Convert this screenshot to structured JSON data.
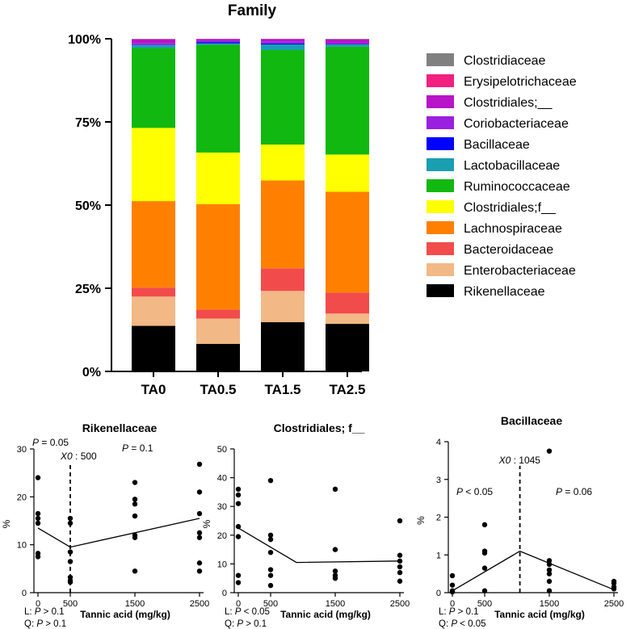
{
  "chart_data": [
    {
      "type": "bar",
      "stacked": true,
      "title": "Family",
      "categories": [
        "TA0",
        "TA0.5",
        "TA1.5",
        "TA2.5"
      ],
      "yticks": [
        "0%",
        "25%",
        "50%",
        "75%",
        "100%"
      ],
      "ylim": [
        0,
        100
      ],
      "series": [
        {
          "name": "Rikenellaceae",
          "color": "#000000",
          "values": [
            13.7,
            8.3,
            14.8,
            14.3
          ]
        },
        {
          "name": "Enterobacteriaceae",
          "color": "#F2B885",
          "values": [
            8.8,
            7.6,
            9.4,
            3.1
          ]
        },
        {
          "name": "Bacteroidaceae",
          "color": "#F24B4B",
          "values": [
            2.7,
            2.7,
            6.8,
            6.3
          ]
        },
        {
          "name": "Lachnospiraceae",
          "color": "#FF8000",
          "values": [
            26.0,
            31.7,
            26.4,
            30.3
          ]
        },
        {
          "name": "Clostridiales;f__",
          "color": "#FFFF00",
          "values": [
            22.0,
            15.5,
            10.8,
            11.2
          ]
        },
        {
          "name": "Ruminococcaceae",
          "color": "#11B80F",
          "values": [
            24.0,
            32.4,
            28.4,
            32.4
          ]
        },
        {
          "name": "Lactobacillaceae",
          "color": "#1A9FB0",
          "values": [
            0.9,
            0.4,
            1.7,
            0.7
          ]
        },
        {
          "name": "Bacillaceae",
          "color": "#0000FF",
          "values": [
            0.1,
            0.4,
            0.3,
            0.1
          ]
        },
        {
          "name": "Coriobacteriaceae",
          "color": "#9B1FE0",
          "values": [
            0.4,
            0.5,
            0.6,
            0.4
          ]
        },
        {
          "name": "Clostridiales;__",
          "color": "#B814C8",
          "values": [
            1.2,
            0.4,
            0.7,
            1.0
          ]
        },
        {
          "name": "Erysipelotrichaceae",
          "color": "#F2207F",
          "values": [
            0.1,
            0.05,
            0.05,
            0.05
          ]
        },
        {
          "name": "Clostridiaceae",
          "color": "#808080",
          "values": [
            0.1,
            0.05,
            0.05,
            0.15
          ]
        }
      ]
    },
    {
      "type": "scatter",
      "title": "Rikenellaceae",
      "xlabel": "Tannic acid (mg/kg)",
      "ylabel": "%",
      "xticks": [
        0,
        500,
        1500,
        2500
      ],
      "yticks": [
        0,
        10,
        20,
        30
      ],
      "ylim": [
        0,
        30
      ],
      "points": [
        [
          0,
          24
        ],
        [
          0,
          16.5
        ],
        [
          0,
          15.5
        ],
        [
          0,
          14.5
        ],
        [
          0,
          8.2
        ],
        [
          0,
          7.5
        ],
        [
          500,
          15.5
        ],
        [
          500,
          14.5
        ],
        [
          500,
          8.5
        ],
        [
          500,
          6.5
        ],
        [
          500,
          3.2
        ],
        [
          500,
          2.5
        ],
        [
          500,
          2.2
        ],
        [
          1500,
          23
        ],
        [
          1500,
          19.5
        ],
        [
          1500,
          18.5
        ],
        [
          1500,
          16
        ],
        [
          1500,
          12
        ],
        [
          1500,
          11.5
        ],
        [
          1500,
          4.5
        ],
        [
          2500,
          26.8
        ],
        [
          2500,
          21
        ],
        [
          2500,
          16.5
        ],
        [
          2500,
          12.5
        ],
        [
          2500,
          11.5
        ],
        [
          2500,
          6.2
        ],
        [
          2500,
          4.5
        ]
      ],
      "fit_line": [
        [
          0,
          13.5
        ],
        [
          500,
          9.5
        ],
        [
          2500,
          15.5
        ]
      ],
      "breakpoint": 500,
      "annotations": {
        "p_left": "P = 0.05",
        "x0": "X0 : 500",
        "p_right": "P = 0.1"
      },
      "stats": {
        "L": "L: P > 0.1",
        "Q": "Q: P > 0.1"
      }
    },
    {
      "type": "scatter",
      "title": "Clostridiales; f__",
      "xlabel": "Tannic acid (mg/kg)",
      "ylabel": "%",
      "xticks": [
        0,
        500,
        1500,
        2500
      ],
      "yticks": [
        0,
        10,
        20,
        30,
        40,
        50
      ],
      "ylim": [
        0,
        50
      ],
      "points": [
        [
          0,
          36
        ],
        [
          0,
          34
        ],
        [
          0,
          31
        ],
        [
          0,
          23
        ],
        [
          0,
          19.5
        ],
        [
          0,
          6
        ],
        [
          0,
          3.5
        ],
        [
          500,
          39
        ],
        [
          500,
          20
        ],
        [
          500,
          18.5
        ],
        [
          500,
          14
        ],
        [
          500,
          8
        ],
        [
          500,
          6
        ],
        [
          500,
          2.5
        ],
        [
          1500,
          36
        ],
        [
          1500,
          15
        ],
        [
          1500,
          7.5
        ],
        [
          1500,
          6
        ],
        [
          1500,
          5
        ],
        [
          2500,
          25
        ],
        [
          2500,
          13
        ],
        [
          2500,
          11
        ],
        [
          2500,
          9
        ],
        [
          2500,
          7
        ],
        [
          2500,
          4
        ]
      ],
      "fit_line": [
        [
          0,
          22.5
        ],
        [
          900,
          10.5
        ],
        [
          2500,
          11
        ]
      ],
      "stats": {
        "L": "L: P < 0.05",
        "Q": "Q: P > 0.1"
      }
    },
    {
      "type": "scatter",
      "title": "Bacillaceae",
      "xlabel": "Tannic acid (mg/kg)",
      "ylabel": "%",
      "xticks": [
        0,
        500,
        1500,
        2500
      ],
      "yticks": [
        0,
        1,
        2,
        3,
        4
      ],
      "ylim": [
        0,
        4
      ],
      "points": [
        [
          0,
          0.45
        ],
        [
          0,
          0.2
        ],
        [
          0,
          0.05
        ],
        [
          0,
          0.02
        ],
        [
          500,
          1.8
        ],
        [
          500,
          1.1
        ],
        [
          500,
          1.05
        ],
        [
          500,
          0.65
        ],
        [
          500,
          0.05
        ],
        [
          1500,
          3.75
        ],
        [
          1500,
          0.85
        ],
        [
          1500,
          0.75
        ],
        [
          1500,
          0.6
        ],
        [
          1500,
          0.5
        ],
        [
          1500,
          0.3
        ],
        [
          1500,
          0.05
        ],
        [
          2500,
          0.3
        ],
        [
          2500,
          0.25
        ],
        [
          2500,
          0.15
        ],
        [
          2500,
          0.1
        ]
      ],
      "fit_line": [
        [
          0,
          0.05
        ],
        [
          1045,
          1.1
        ],
        [
          2500,
          0.08
        ]
      ],
      "breakpoint": 1045,
      "annotations": {
        "p_left": "P < 0.05",
        "x0": "X0 : 1045",
        "p_right": "P = 0.06"
      },
      "stats": {
        "L": "L: P > 0.1",
        "Q": "Q: P < 0.05"
      }
    }
  ]
}
